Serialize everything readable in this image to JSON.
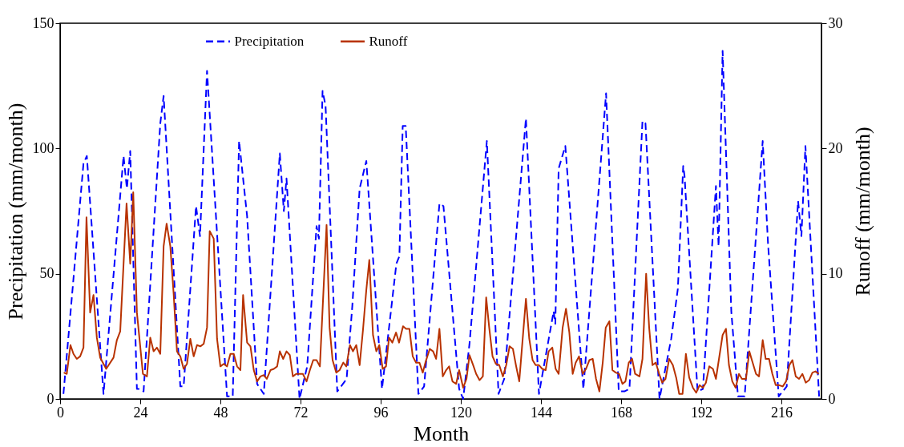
{
  "chart_data": {
    "type": "line",
    "xlabel": "Month",
    "ylabel": "Precipitation (mm/month)",
    "y2label": "Runoff    (mm/month)",
    "xlim": [
      0,
      228
    ],
    "xticks": [
      0,
      24,
      48,
      72,
      96,
      120,
      144,
      168,
      192,
      216
    ],
    "ylim": [
      0,
      150
    ],
    "yticks": [
      0,
      50,
      100,
      150
    ],
    "y2lim": [
      0,
      30
    ],
    "y2ticks": [
      0,
      10,
      20,
      30
    ],
    "legend": "top",
    "grid": false,
    "series": [
      {
        "name": "Precipitation",
        "color": "#0000ff",
        "line_style": "dashed",
        "x": [
          1,
          7,
          8,
          13,
          19,
          20,
          21,
          23,
          24,
          25,
          30,
          31,
          36,
          37,
          40.7,
          41.9,
          44,
          50,
          51.7,
          53.6,
          56,
          59,
          61,
          65.8,
          67,
          67.8,
          71.7,
          74,
          76.8,
          77.5,
          78.6,
          79.5,
          83,
          85.8,
          87.5,
          89.7,
          91.7,
          96.4,
          100.7,
          101.6,
          102.6,
          103.5,
          107.3,
          109,
          113.6,
          114.8,
          119.5,
          120.7,
          122.6,
          127.8,
          131.3,
          133,
          139.5,
          143.4,
          147.8,
          148.3,
          149.3,
          151.3,
          156.7,
          163.5,
          167.3,
          169,
          170.5,
          174.4,
          175.3,
          179.5,
          183,
          185,
          186.6,
          187,
          190.9,
          192.5,
          196.4,
          197.2,
          198.4,
          201,
          203,
          205,
          210.4,
          212,
          215.2,
          217.6,
          221,
          222,
          223.2,
          227.3
        ],
        "values": [
          2,
          94,
          97,
          2,
          97,
          84,
          99,
          4,
          4,
          3,
          110,
          121,
          5,
          5,
          77,
          65,
          131,
          1,
          1,
          103,
          73,
          6,
          2,
          98,
          75,
          88,
          0,
          13,
          69,
          64,
          123,
          117,
          3,
          8,
          37,
          84,
          95,
          4,
          54,
          57,
          109,
          109,
          2,
          5,
          78,
          77,
          4,
          0,
          22,
          103,
          2,
          8,
          112,
          2,
          35,
          30,
          92,
          101,
          4,
          122,
          3,
          3,
          4,
          111,
          110,
          0,
          24,
          44,
          93,
          89,
          3,
          4,
          85,
          61,
          139,
          35,
          1,
          1,
          103,
          62,
          1,
          5,
          79,
          65,
          101,
          1
        ]
      },
      {
        "name": "Runoff",
        "color": "#b83200",
        "line_style": "solid",
        "axis": "y2",
        "x": [
          1.1,
          2,
          3.1,
          4,
          5,
          6,
          7,
          7.9,
          9,
          10,
          11,
          12,
          13.8,
          16,
          17,
          18,
          19.9,
          21,
          21.9,
          23,
          24.8,
          26,
          27,
          28,
          29,
          30,
          31,
          31.9,
          33,
          34,
          35,
          36,
          37,
          38,
          39,
          40,
          41,
          42,
          43,
          44,
          44.8,
          46,
          47,
          48,
          49,
          50,
          51,
          52,
          53,
          54,
          54.8,
          56,
          57,
          58,
          59,
          60,
          61,
          61.9,
          63,
          64,
          65,
          65.8,
          66.8,
          67.8,
          68.8,
          69.7,
          70.7,
          71.7,
          72.7,
          73.8,
          74.8,
          75.8,
          76.8,
          77.8,
          79.8,
          80.7,
          81.6,
          82.7,
          83.7,
          84.8,
          85.7,
          86.8,
          87.7,
          88.7,
          89.7,
          90.7,
          91.7,
          92.6,
          93.7,
          94.7,
          95.6,
          96.6,
          97.6,
          98.5,
          99.5,
          100.6,
          101.5,
          102.7,
          103.6,
          104.6,
          105.6,
          106.6,
          107.6,
          108.6,
          109.5,
          110.7,
          111.7,
          112.6,
          113.6,
          114.6,
          115.6,
          116.5,
          117.5,
          118.6,
          119.5,
          120.7,
          121.7,
          122.6,
          123.7,
          124.6,
          125.6,
          126.6,
          127.6,
          128.5,
          129.5,
          130.5,
          131.5,
          132.6,
          133.6,
          134.6,
          135.6,
          136.5,
          137.5,
          139.5,
          140.5,
          141.5,
          142.4,
          143.4,
          144.4,
          145.4,
          146.3,
          147.4,
          148.4,
          149.3,
          150.5,
          151.5,
          152.5,
          153.5,
          154.4,
          155.4,
          156.5,
          157.5,
          158.5,
          159.5,
          160.5,
          161.5,
          162.5,
          163.4,
          164.5,
          165.4,
          166.4,
          167.4,
          168.4,
          169.3,
          170.3,
          171.3,
          172.2,
          173.5,
          174.4,
          175.5,
          176.4,
          177.4,
          178.4,
          179.4,
          180.3,
          181.3,
          182.4,
          183.5,
          184.5,
          185.4,
          186.4,
          187.4,
          188.4,
          189.5,
          190.5,
          191.5,
          192.5,
          193.4,
          194.4,
          195.5,
          196.4,
          198.4,
          199.4,
          200.3,
          201.3,
          202.3,
          203.3,
          204.2,
          205.4,
          206.4,
          207.4,
          208.4,
          209.3,
          210.4,
          211.3,
          212.3,
          213.3,
          214.3,
          215.2,
          216.4,
          217.4,
          218.4,
          219.3,
          220.3,
          221.3,
          222.3,
          223.3,
          224.3,
          225.3,
          226.2,
          227.2
        ],
        "values": [
          2.1,
          2.0,
          4.3,
          3.6,
          3.2,
          3.4,
          4.1,
          14.5,
          6.9,
          8.3,
          4.9,
          3.3,
          2.4,
          3.3,
          4.7,
          5.4,
          15.6,
          10.8,
          16.5,
          6.9,
          2.0,
          1.8,
          4.9,
          3.8,
          4.1,
          3.6,
          12.2,
          14.0,
          12.2,
          8.4,
          3.8,
          3.4,
          2.4,
          2.8,
          4.8,
          3.4,
          4.3,
          4.2,
          4.4,
          5.7,
          13.4,
          12.8,
          4.8,
          2.6,
          2.8,
          2.6,
          3.6,
          3.6,
          2.6,
          2.3,
          8.3,
          4.5,
          4.2,
          2.3,
          1.4,
          1.8,
          1.9,
          1.6,
          2.3,
          2.4,
          2.6,
          3.8,
          3.2,
          3.8,
          3.5,
          1.8,
          2.0,
          2.0,
          2.0,
          1.4,
          2.3,
          3.1,
          3.1,
          2.6,
          13.9,
          5.7,
          3.1,
          2.1,
          2.3,
          2.9,
          2.6,
          4.3,
          3.8,
          4.3,
          2.7,
          5.5,
          8.7,
          11.1,
          5.1,
          3.8,
          4.3,
          2.4,
          2.6,
          4.9,
          4.5,
          5.3,
          4.5,
          5.8,
          5.6,
          5.6,
          3.4,
          2.9,
          2.9,
          2.1,
          3.0,
          4.0,
          3.8,
          3.2,
          5.6,
          1.8,
          2.3,
          2.6,
          1.4,
          1.2,
          2.3,
          0.9,
          1.6,
          3.5,
          2.7,
          2.0,
          1.5,
          1.8,
          8.1,
          5.7,
          3.4,
          2.8,
          2.7,
          1.8,
          2.7,
          4.2,
          4.0,
          2.7,
          1.4,
          8.0,
          4.8,
          3.1,
          2.7,
          2.7,
          2.4,
          2.3,
          3.8,
          4.1,
          2.4,
          2.0,
          5.7,
          7.2,
          5.3,
          2.0,
          2.9,
          3.4,
          2.0,
          2.4,
          3.1,
          3.2,
          1.6,
          0.6,
          2.9,
          5.7,
          6.2,
          2.3,
          2.1,
          2.0,
          1.2,
          1.4,
          2.9,
          3.2,
          2.0,
          1.8,
          3.2,
          10.0,
          5.7,
          2.7,
          2.9,
          2.0,
          1.3,
          1.6,
          3.2,
          2.7,
          1.7,
          0.4,
          0.4,
          3.6,
          1.7,
          0.9,
          0.5,
          1.1,
          0.9,
          1.3,
          2.6,
          2.4,
          1.6,
          5.1,
          5.6,
          2.7,
          1.4,
          0.9,
          2.0,
          1.6,
          1.6,
          3.8,
          2.9,
          2.0,
          1.8,
          4.7,
          3.2,
          3.2,
          2.0,
          1.1,
          1.1,
          1.0,
          1.4,
          2.7,
          3.1,
          1.8,
          1.6,
          2.0,
          1.3,
          1.5,
          2.1,
          2.2,
          2.0
        ]
      }
    ]
  }
}
